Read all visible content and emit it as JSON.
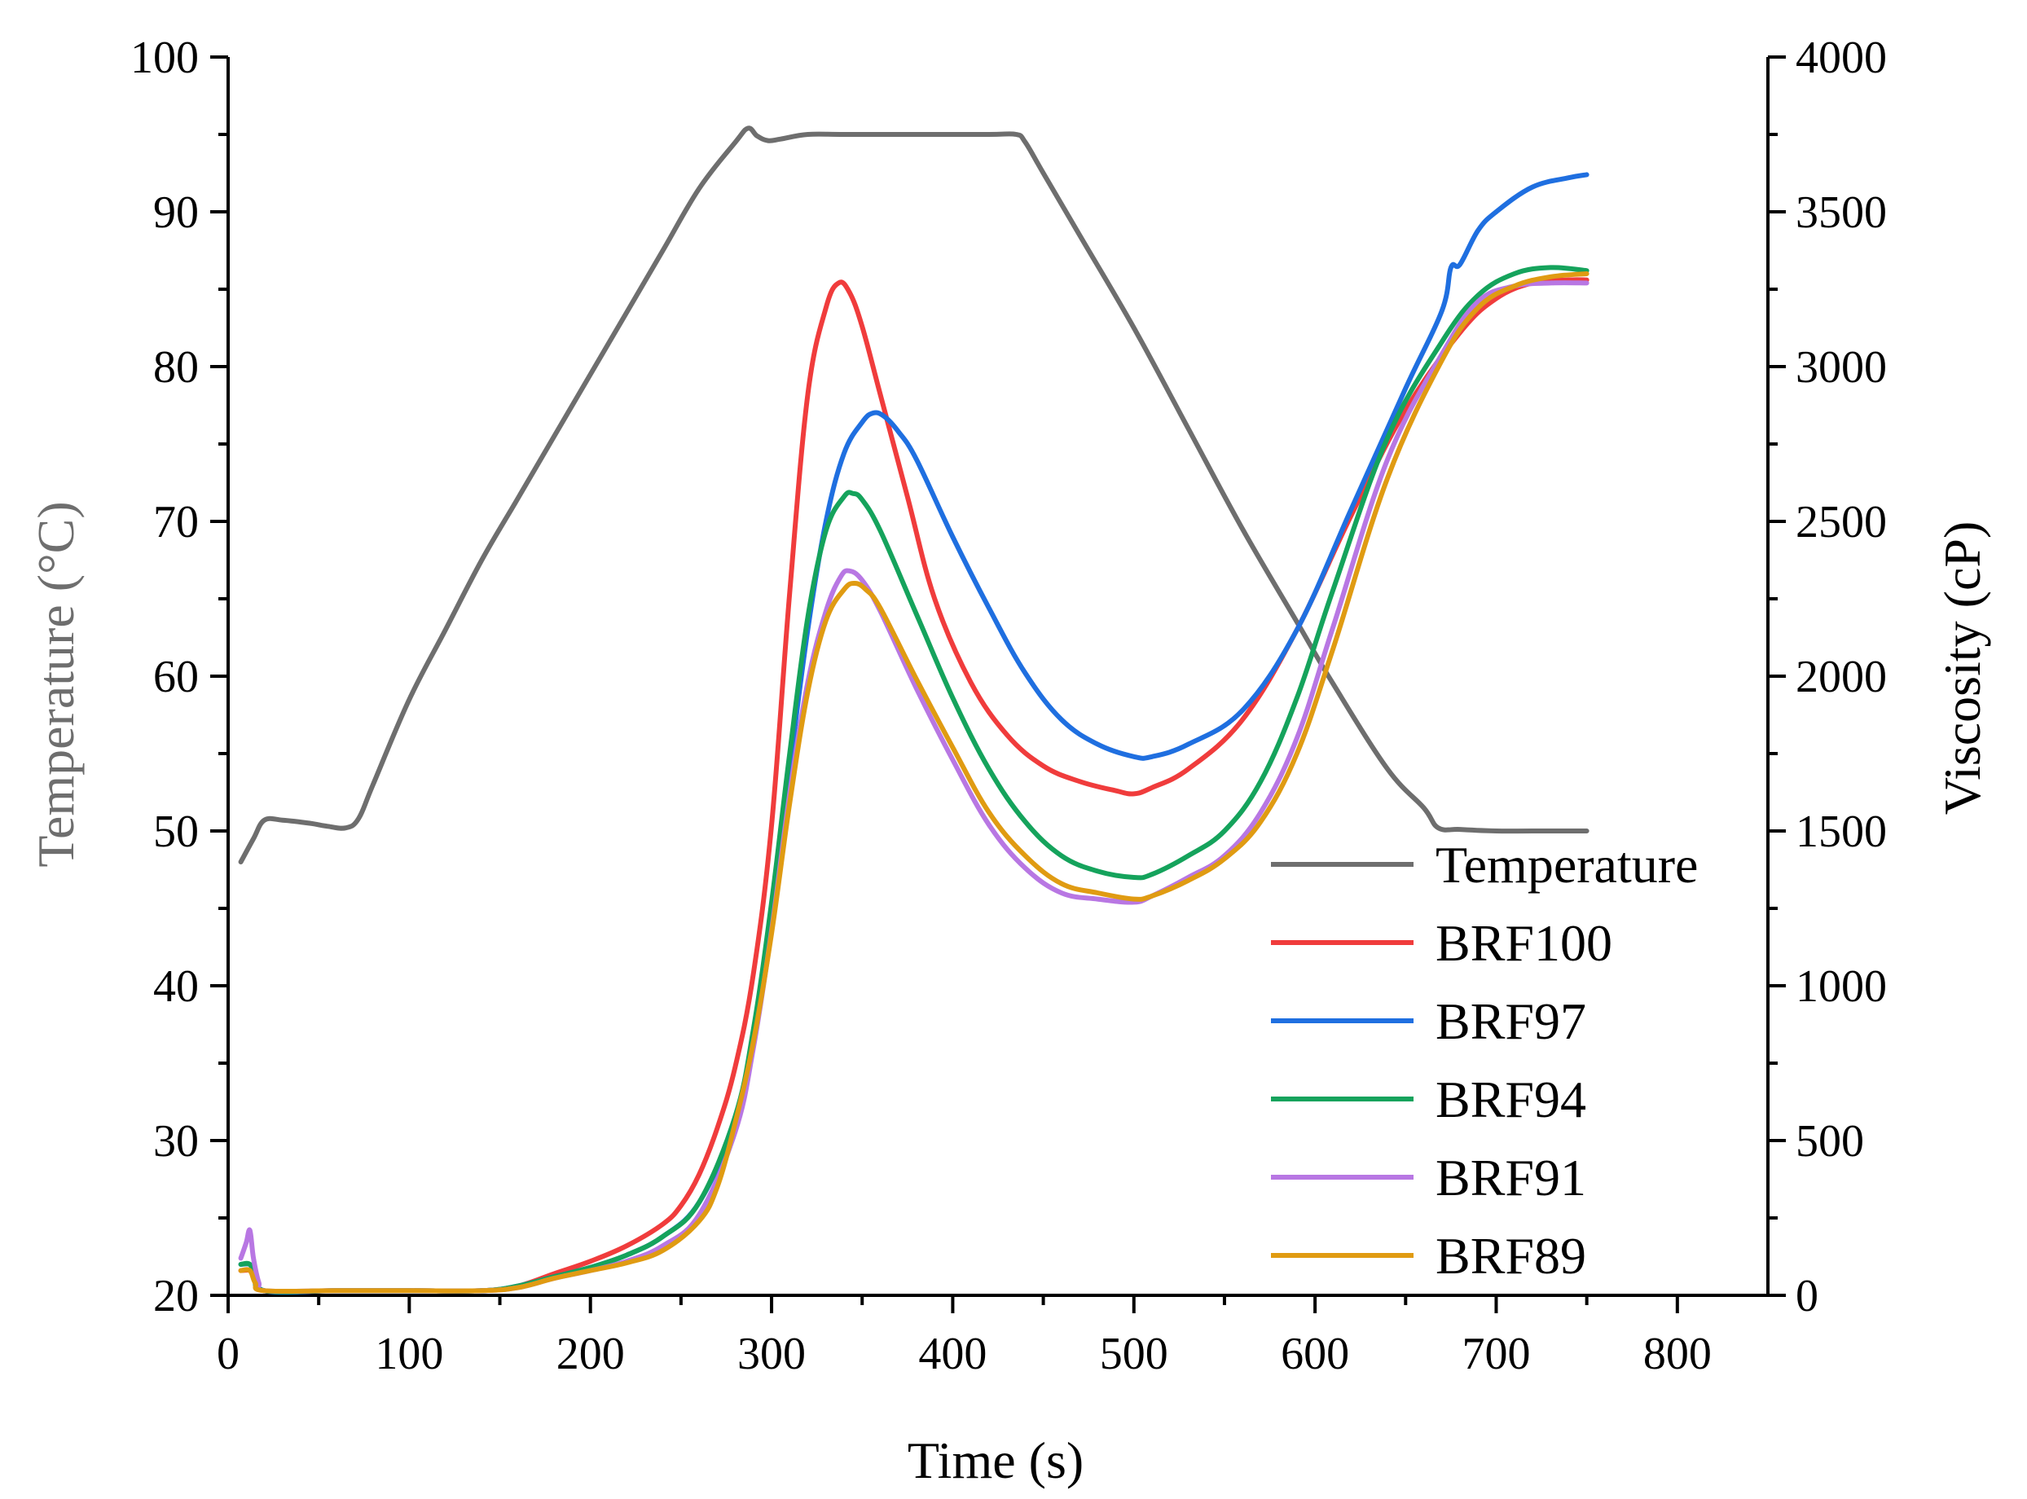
{
  "chart_data": {
    "type": "line",
    "title": "",
    "xlabel": "Time (s)",
    "ylabel_left": "Temperature (°C)",
    "ylabel_right": "Viscosity (cP)",
    "xlim": [
      0,
      850
    ],
    "ylim_left": [
      20,
      100
    ],
    "ylim_right": [
      0,
      4000
    ],
    "x_ticks": [
      0,
      100,
      200,
      300,
      400,
      500,
      600,
      700,
      800
    ],
    "x_tick_labels": [
      "0",
      "100",
      "200",
      "300",
      "400",
      "500",
      "600",
      "700",
      "800"
    ],
    "y_left_ticks": [
      20,
      30,
      40,
      50,
      60,
      70,
      80,
      90,
      100
    ],
    "y_left_tick_labels": [
      "20",
      "30",
      "40",
      "50",
      "60",
      "70",
      "80",
      "90",
      "100"
    ],
    "y_right_ticks": [
      0,
      500,
      1000,
      1500,
      2000,
      2500,
      3000,
      3500,
      4000
    ],
    "y_right_tick_labels": [
      "0",
      "500",
      "1000",
      "1500",
      "2000",
      "2500",
      "3000",
      "3500",
      "4000"
    ],
    "grid": false,
    "legend_position": "bottom-right",
    "series": [
      {
        "name": "Temperature",
        "axis": "left",
        "color": "#6e6e6e",
        "x": [
          7,
          14,
          20,
          30,
          45,
          55,
          65,
          72,
          80,
          100,
          120,
          140,
          160,
          180,
          200,
          220,
          240,
          260,
          280,
          287,
          292,
          298,
          305,
          320,
          340,
          380,
          420,
          435,
          440,
          450,
          470,
          500,
          530,
          560,
          590,
          610,
          640,
          660,
          668,
          680,
          700,
          720,
          750
        ],
        "values": [
          48.0,
          49.5,
          50.7,
          50.7,
          50.5,
          50.3,
          50.2,
          50.8,
          53,
          58.5,
          63,
          67.5,
          71.5,
          75.5,
          79.5,
          83.5,
          87.5,
          91.5,
          94.5,
          95.4,
          94.9,
          94.6,
          94.7,
          95,
          95,
          95,
          95,
          95,
          94.5,
          92.5,
          88.5,
          82.5,
          76,
          69.5,
          63.5,
          59.5,
          54,
          51.5,
          50.2,
          50.1,
          50,
          50,
          50
        ]
      },
      {
        "name": "BRF100",
        "axis": "right",
        "color": "#f03c3c",
        "x": [
          7,
          13,
          15,
          20,
          60,
          100,
          140,
          160,
          180,
          200,
          220,
          240,
          250,
          260,
          270,
          280,
          290,
          300,
          310,
          320,
          330,
          337,
          343,
          350,
          360,
          375,
          390,
          410,
          430,
          450,
          470,
          490,
          500,
          510,
          530,
          560,
          590,
          620,
          650,
          680,
          700,
          720,
          740,
          750
        ],
        "values": [
          80,
          80,
          60,
          15,
          15,
          15,
          15,
          30,
          70,
          110,
          160,
          230,
          290,
          390,
          540,
          740,
          1040,
          1520,
          2270,
          2910,
          3190,
          3270,
          3240,
          3130,
          2910,
          2580,
          2250,
          1980,
          1810,
          1710,
          1660,
          1630,
          1620,
          1640,
          1700,
          1860,
          2150,
          2520,
          2860,
          3110,
          3220,
          3270,
          3280,
          3280
        ]
      },
      {
        "name": "BRF97",
        "axis": "right",
        "color": "#1f6fe0",
        "x": [
          7,
          12,
          15,
          20,
          60,
          100,
          140,
          160,
          180,
          200,
          220,
          240,
          260,
          280,
          290,
          300,
          310,
          320,
          330,
          340,
          350,
          356,
          362,
          370,
          380,
          400,
          420,
          440,
          460,
          480,
          500,
          510,
          530,
          560,
          590,
          620,
          650,
          670,
          675,
          680,
          690,
          700,
          720,
          740,
          750
        ],
        "values": [
          100,
          100,
          80,
          15,
          15,
          15,
          15,
          30,
          60,
          90,
          130,
          190,
          300,
          560,
          820,
          1200,
          1700,
          2150,
          2500,
          2720,
          2820,
          2850,
          2840,
          2790,
          2700,
          2450,
          2220,
          2010,
          1860,
          1780,
          1740,
          1740,
          1780,
          1890,
          2150,
          2540,
          2930,
          3180,
          3320,
          3330,
          3440,
          3500,
          3580,
          3610,
          3620
        ]
      },
      {
        "name": "BRF94",
        "axis": "right",
        "color": "#15a35c",
        "x": [
          7,
          12,
          15,
          20,
          60,
          100,
          140,
          160,
          180,
          200,
          220,
          240,
          260,
          280,
          290,
          300,
          310,
          320,
          330,
          340,
          345,
          350,
          360,
          380,
          400,
          420,
          440,
          460,
          480,
          500,
          510,
          530,
          550,
          570,
          590,
          610,
          640,
          670,
          690,
          710,
          730,
          750
        ],
        "values": [
          100,
          100,
          60,
          15,
          15,
          15,
          15,
          30,
          60,
          90,
          130,
          190,
          300,
          580,
          860,
          1270,
          1750,
          2190,
          2470,
          2580,
          2590,
          2570,
          2470,
          2200,
          1930,
          1700,
          1530,
          1420,
          1370,
          1350,
          1360,
          1420,
          1500,
          1660,
          1930,
          2280,
          2770,
          3080,
          3230,
          3300,
          3320,
          3310
        ]
      },
      {
        "name": "BRF91",
        "axis": "right",
        "color": "#b877e3",
        "x": [
          7,
          10,
          12,
          14,
          17,
          20,
          60,
          100,
          140,
          160,
          180,
          200,
          220,
          240,
          260,
          280,
          290,
          300,
          310,
          320,
          330,
          338,
          343,
          350,
          360,
          380,
          400,
          420,
          440,
          460,
          480,
          500,
          510,
          530,
          550,
          570,
          590,
          610,
          640,
          670,
          690,
          710,
          730,
          750
        ],
        "values": [
          120,
          170,
          210,
          120,
          40,
          15,
          15,
          15,
          15,
          25,
          55,
          80,
          110,
          160,
          260,
          530,
          800,
          1180,
          1620,
          1980,
          2210,
          2320,
          2340,
          2310,
          2210,
          1960,
          1730,
          1520,
          1380,
          1300,
          1280,
          1270,
          1290,
          1350,
          1420,
          1560,
          1800,
          2160,
          2700,
          3040,
          3210,
          3260,
          3270,
          3270
        ]
      },
      {
        "name": "BRF89",
        "axis": "right",
        "color": "#e09b12",
        "x": [
          7,
          12,
          15,
          20,
          60,
          100,
          140,
          160,
          180,
          200,
          220,
          240,
          260,
          270,
          280,
          290,
          300,
          310,
          320,
          330,
          340,
          346,
          352,
          360,
          380,
          400,
          420,
          440,
          460,
          480,
          500,
          510,
          530,
          550,
          570,
          590,
          610,
          640,
          670,
          690,
          710,
          730,
          750
        ],
        "values": [
          80,
          80,
          40,
          15,
          15,
          15,
          15,
          25,
          55,
          80,
          105,
          145,
          240,
          350,
          560,
          820,
          1170,
          1590,
          1950,
          2180,
          2280,
          2300,
          2280,
          2220,
          1990,
          1770,
          1560,
          1420,
          1330,
          1300,
          1280,
          1290,
          1340,
          1410,
          1530,
          1750,
          2090,
          2640,
          3020,
          3190,
          3260,
          3290,
          3300
        ]
      }
    ]
  }
}
